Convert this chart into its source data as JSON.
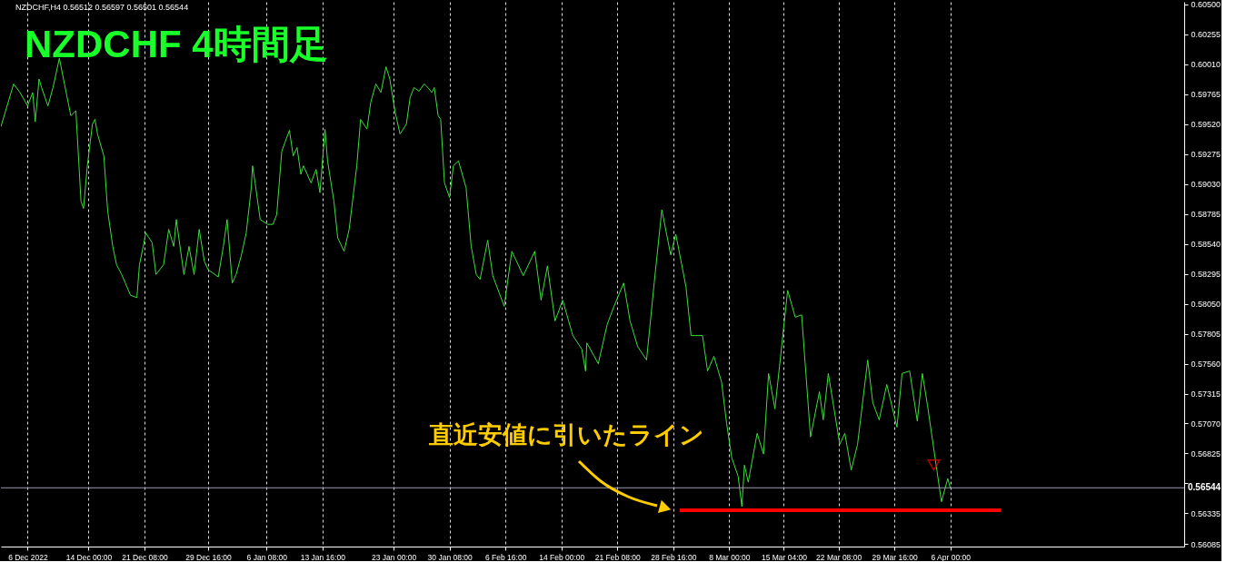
{
  "chart_data": {
    "type": "line",
    "title": "NZDCHF 4時間足",
    "subtitle": "NZDCHF,H4  0.56512 0.56597 0.56501 0.56544",
    "annotations": [
      "直近安値に引いたライン"
    ],
    "xlim": [
      "2022-12-02T12:00",
      "2023-05-06T16:00"
    ],
    "ylim": [
      0.56063,
      0.60522
    ],
    "xticks": [
      {
        "value": "2022-12-06T00:00",
        "label": "6 Dec 2022"
      },
      {
        "value": "2022-12-14T00:00",
        "label": "14 Dec 00:00"
      },
      {
        "value": "2022-12-21T08:00",
        "label": "21 Dec 08:00"
      },
      {
        "value": "2022-12-29T16:00",
        "label": "29 Dec 16:00"
      },
      {
        "value": "2023-01-06T08:00",
        "label": "6 Jan 08:00"
      },
      {
        "value": "2023-01-13T16:00",
        "label": "13 Jan 16:00"
      },
      {
        "value": "2023-01-23T00:00",
        "label": "23 Jan 00:00"
      },
      {
        "value": "2023-01-30T08:00",
        "label": "30 Jan 08:00"
      },
      {
        "value": "2023-02-06T16:00",
        "label": "6 Feb 16:00"
      },
      {
        "value": "2023-02-14T00:00",
        "label": "14 Feb 00:00"
      },
      {
        "value": "2023-02-21T08:00",
        "label": "21 Feb 08:00"
      },
      {
        "value": "2023-02-28T16:00",
        "label": "28 Feb 16:00"
      },
      {
        "value": "2023-03-08T00:00",
        "label": "8 Mar 00:00"
      },
      {
        "value": "2023-03-15T04:00",
        "label": "15 Mar 04:00"
      },
      {
        "value": "2023-03-22T08:00",
        "label": "22 Mar 08:00"
      },
      {
        "value": "2023-03-29T16:00",
        "label": "29 Mar 16:00"
      },
      {
        "value": "2023-04-06T00:00",
        "label": "6 Apr 00:00"
      }
    ],
    "yticks": [
      {
        "value": 0.605,
        "label": "0.60500"
      },
      {
        "value": 0.60255,
        "label": "0.60255"
      },
      {
        "value": 0.6001,
        "label": "0.60010"
      },
      {
        "value": 0.59765,
        "label": "0.59765"
      },
      {
        "value": 0.5952,
        "label": "0.59520"
      },
      {
        "value": 0.59275,
        "label": "0.59275"
      },
      {
        "value": 0.5903,
        "label": "0.59030"
      },
      {
        "value": 0.58785,
        "label": "0.58785"
      },
      {
        "value": 0.5854,
        "label": "0.58540"
      },
      {
        "value": 0.58295,
        "label": "0.58295"
      },
      {
        "value": 0.5805,
        "label": "0.58050"
      },
      {
        "value": 0.57805,
        "label": "0.57805"
      },
      {
        "value": 0.5756,
        "label": "0.57560"
      },
      {
        "value": 0.57315,
        "label": "0.57315"
      },
      {
        "value": 0.5707,
        "label": "0.57070"
      },
      {
        "value": 0.56825,
        "label": "0.56825"
      },
      {
        "value": 0.5658,
        "label": null
      },
      {
        "value": 0.56335,
        "label": "0.56335"
      },
      {
        "value": 0.56085,
        "label": "0.56085"
      }
    ],
    "grid": "x",
    "marker": "none",
    "line_style": "solid",
    "ref_lines": [
      {
        "axis": "y",
        "value": 0.56544,
        "label": "0.56544",
        "color": "#9a9ab4"
      }
    ],
    "series": [
      {
        "color": "#3ddc3d",
        "x": [
          "2022-12-02T12:00",
          "2022-12-04T04:00",
          "2022-12-05T00:00",
          "2022-12-06T00:00",
          "2022-12-06T16:00",
          "2022-12-07T00:00",
          "2022-12-07T12:00",
          "2022-12-07T20:00",
          "2022-12-08T16:00",
          "2022-12-09T08:00",
          "2022-12-10T04:00",
          "2022-12-10T20:00",
          "2022-12-11T16:00",
          "2022-12-12T08:00",
          "2022-12-13T00:00",
          "2022-12-13T08:00",
          "2022-12-13T20:00",
          "2022-12-14T12:00",
          "2022-12-14T20:00",
          "2022-12-15T04:00",
          "2022-12-16T00:00",
          "2022-12-16T12:00",
          "2022-12-17T04:00",
          "2022-12-17T16:00",
          "2022-12-18T08:00",
          "2022-12-19T12:00",
          "2022-12-20T08:00",
          "2022-12-20T16:00",
          "2022-12-21T04:00",
          "2022-12-21T12:00",
          "2022-12-22T08:00",
          "2022-12-22T20:00",
          "2022-12-23T20:00",
          "2022-12-24T12:00",
          "2022-12-25T04:00",
          "2022-12-25T12:00",
          "2022-12-26T12:00",
          "2022-12-27T04:00",
          "2022-12-27T20:00",
          "2022-12-28T12:00",
          "2022-12-29T04:00",
          "2022-12-29T16:00",
          "2022-12-31T00:00",
          "2022-12-31T16:00",
          "2023-01-01T04:00",
          "2023-01-01T20:00",
          "2023-01-02T08:00",
          "2023-01-03T00:00",
          "2023-01-03T16:00",
          "2023-01-04T08:00",
          "2023-01-04T12:00",
          "2023-01-04T20:00",
          "2023-01-05T12:00",
          "2023-01-06T12:00",
          "2023-01-07T04:00",
          "2023-01-07T16:00",
          "2023-01-08T08:00",
          "2023-01-09T08:00",
          "2023-01-09T20:00",
          "2023-01-10T08:00",
          "2023-01-10T20:00",
          "2023-01-11T04:00",
          "2023-01-11T16:00",
          "2023-01-12T04:00",
          "2023-01-12T20:00",
          "2023-01-13T08:00",
          "2023-01-14T00:00",
          "2023-01-14T08:00",
          "2023-01-15T04:00",
          "2023-01-15T16:00",
          "2023-01-16T12:00",
          "2023-01-17T04:00",
          "2023-01-18T04:00",
          "2023-01-18T16:00",
          "2023-01-19T12:00",
          "2023-01-20T00:00",
          "2023-01-20T16:00",
          "2023-01-21T08:00",
          "2023-01-22T00:00",
          "2023-01-22T12:00",
          "2023-01-23T04:00",
          "2023-01-23T20:00",
          "2023-01-24T16:00",
          "2023-01-25T04:00",
          "2023-01-25T16:00",
          "2023-01-26T08:00",
          "2023-01-27T00:00",
          "2023-01-27T12:00",
          "2023-01-28T00:00",
          "2023-01-28T08:00",
          "2023-01-28T20:00",
          "2023-01-29T04:00",
          "2023-01-29T16:00",
          "2023-01-30T08:00",
          "2023-01-30T20:00",
          "2023-01-31T12:00",
          "2023-02-01T00:00",
          "2023-02-01T12:00",
          "2023-02-02T04:00",
          "2023-02-02T20:00",
          "2023-02-03T08:00",
          "2023-02-04T08:00",
          "2023-02-05T00:00",
          "2023-02-06T12:00",
          "2023-02-07T12:00",
          "2023-02-09T00:00",
          "2023-02-10T12:00",
          "2023-02-11T08:00",
          "2023-02-12T04:00",
          "2023-02-13T04:00",
          "2023-02-14T04:00",
          "2023-02-15T12:00",
          "2023-02-16T16:00",
          "2023-02-17T04:00",
          "2023-02-17T08:00",
          "2023-02-18T20:00",
          "2023-02-20T00:00",
          "2023-02-20T20:00",
          "2023-02-22T04:00",
          "2023-02-23T00:00",
          "2023-02-24T00:00",
          "2023-02-25T04:00",
          "2023-02-26T04:00",
          "2023-02-27T04:00",
          "2023-02-28T08:00",
          "2023-03-01T00:00",
          "2023-03-02T08:00",
          "2023-03-03T00:00",
          "2023-03-04T12:00",
          "2023-03-05T04:00",
          "2023-03-06T00:00",
          "2023-03-07T00:00",
          "2023-03-07T16:00",
          "2023-03-08T08:00",
          "2023-03-09T04:00",
          "2023-03-09T16:00",
          "2023-03-10T00:00",
          "2023-03-10T12:00",
          "2023-03-11T16:00",
          "2023-03-12T12:00",
          "2023-03-13T04:00",
          "2023-03-14T00:00",
          "2023-03-15T16:00",
          "2023-03-16T16:00",
          "2023-03-17T12:00",
          "2023-03-18T16:00",
          "2023-03-19T20:00",
          "2023-03-20T08:00",
          "2023-03-21T00:00",
          "2023-03-22T12:00",
          "2023-03-23T04:00",
          "2023-03-24T00:00",
          "2023-03-24T20:00",
          "2023-03-26T04:00",
          "2023-03-26T20:00",
          "2023-03-27T16:00",
          "2023-03-28T16:00",
          "2023-03-30T00:00",
          "2023-03-30T16:00",
          "2023-03-31T16:00",
          "2023-04-01T16:00",
          "2023-04-02T08:00",
          "2023-04-03T00:00",
          "2023-04-04T20:00",
          "2023-04-05T16:00",
          "2023-04-06T00:00"
        ],
        "values": [
          0.595,
          0.5985,
          0.5978,
          0.5967,
          0.5978,
          0.5954,
          0.5989,
          0.5982,
          0.5967,
          0.5982,
          0.6006,
          0.5985,
          0.5959,
          0.5963,
          0.5889,
          0.5883,
          0.5918,
          0.5952,
          0.5956,
          0.5944,
          0.5926,
          0.5881,
          0.5852,
          0.5837,
          0.5829,
          0.5812,
          0.581,
          0.5837,
          0.5852,
          0.5863,
          0.5855,
          0.5829,
          0.5837,
          0.5866,
          0.5852,
          0.5874,
          0.5829,
          0.5852,
          0.5829,
          0.5866,
          0.584,
          0.5833,
          0.5827,
          0.5852,
          0.5874,
          0.5822,
          0.5829,
          0.5844,
          0.5863,
          0.59,
          0.5918,
          0.5904,
          0.5874,
          0.587,
          0.587,
          0.5878,
          0.593,
          0.5947,
          0.5926,
          0.5933,
          0.5911,
          0.5918,
          0.5911,
          0.5904,
          0.5915,
          0.5896,
          0.5948,
          0.5922,
          0.5889,
          0.5859,
          0.5848,
          0.5866,
          0.5918,
          0.5956,
          0.5948,
          0.597,
          0.5985,
          0.5978,
          0.5999,
          0.5989,
          0.5963,
          0.5944,
          0.5952,
          0.5974,
          0.5982,
          0.5979,
          0.5985,
          0.5982,
          0.5978,
          0.5982,
          0.5959,
          0.5956,
          0.5904,
          0.5892,
          0.5918,
          0.5922,
          0.5911,
          0.59,
          0.5852,
          0.5829,
          0.5825,
          0.5857,
          0.5828,
          0.5803,
          0.5848,
          0.5828,
          0.5848,
          0.5808,
          0.5836,
          0.5791,
          0.5808,
          0.5779,
          0.5768,
          0.575,
          0.5773,
          0.5756,
          0.5788,
          0.5802,
          0.5822,
          0.5791,
          0.577,
          0.5759,
          0.5822,
          0.5882,
          0.5845,
          0.5862,
          0.5819,
          0.5779,
          0.5779,
          0.575,
          0.5762,
          0.5741,
          0.5707,
          0.5679,
          0.5664,
          0.5639,
          0.5673,
          0.5659,
          0.5699,
          0.5682,
          0.5748,
          0.5719,
          0.5816,
          0.5794,
          0.5796,
          0.5696,
          0.5733,
          0.571,
          0.5748,
          0.569,
          0.5699,
          0.5669,
          0.569,
          0.5759,
          0.5724,
          0.571,
          0.5739,
          0.5704,
          0.5748,
          0.575,
          0.5709,
          0.5748,
          0.5722,
          0.5643,
          0.5662,
          0.5654
        ]
      },
      {
        "type": "line",
        "color": "#ff0000",
        "x": [
          "2023-03-01T12:00",
          "2023-04-12T16:00"
        ],
        "values": [
          0.5636,
          0.5636
        ]
      },
      {
        "type": "scatter",
        "marker": "triangle",
        "color": "#ff0000",
        "x": [
          "2023-04-03T20:00"
        ],
        "values": [
          0.5673
        ]
      }
    ]
  }
}
